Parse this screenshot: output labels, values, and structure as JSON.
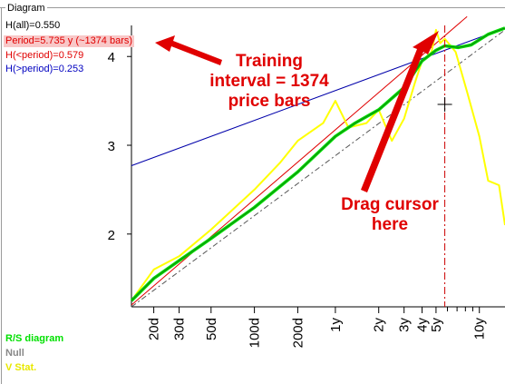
{
  "panel": {
    "tab_label": "Diagram"
  },
  "stats": {
    "h_all": "H(all)=0.550",
    "period": "Period=5.735 y (~1374 bars)",
    "h_lt_period": "H(<period)=0.579",
    "h_gt_period": "H(>period)=0.253"
  },
  "legend": {
    "rs": "R/S diagram",
    "null": "Null",
    "vstat": "V Stat."
  },
  "callouts": {
    "training_line1": "Training",
    "training_line2": "interval = 1374",
    "training_line3": "price bars",
    "drag_line1": "Drag cursor",
    "drag_line2": "here"
  },
  "colors": {
    "rs": "#00e000",
    "null": "#555555",
    "vstat": "#ffff00",
    "blue_fit": "#0000aa",
    "red_fit": "#e00000",
    "callout": "#e00000"
  },
  "chart_data": {
    "type": "line",
    "y_ticks": [
      "2",
      "3",
      "4"
    ],
    "y_tick_values": [
      2,
      3,
      4
    ],
    "ylim": [
      1.18,
      4.35
    ],
    "x_tick_labels": [
      "20d",
      "30d",
      "50d",
      "100d",
      "200d",
      "1y",
      "2y",
      "3y",
      "4y",
      "5y",
      "10y"
    ],
    "x_tick_days": [
      20,
      30,
      50,
      100,
      200,
      365,
      730,
      1095,
      1460,
      1825,
      3650
    ],
    "x_scale": "log",
    "xlim_days": [
      14,
      5500
    ],
    "cursor_days": 2100,
    "series": [
      {
        "name": "R/S diagram",
        "x": [
          14,
          20,
          30,
          50,
          100,
          200,
          365,
          500,
          730,
          1095,
          1460,
          1825,
          2100,
          2600,
          3200,
          4200,
          5500
        ],
        "y": [
          1.25,
          1.5,
          1.7,
          1.95,
          2.3,
          2.7,
          3.1,
          3.25,
          3.4,
          3.65,
          3.95,
          4.07,
          4.12,
          4.1,
          4.13,
          4.25,
          4.32
        ]
      },
      {
        "name": "Null",
        "x": [
          14,
          5500
        ],
        "y": [
          1.18,
          4.3
        ]
      },
      {
        "name": "V Stat.",
        "x": [
          14,
          20,
          30,
          50,
          100,
          150,
          200,
          300,
          365,
          450,
          600,
          730,
          900,
          1095,
          1300,
          1460,
          1700,
          1825,
          1950,
          2100,
          2500,
          3000,
          3650,
          4200,
          5000,
          5500
        ],
        "y": [
          1.25,
          1.6,
          1.75,
          2.05,
          2.5,
          2.8,
          3.05,
          3.25,
          3.5,
          3.2,
          3.25,
          3.4,
          3.05,
          3.3,
          3.7,
          3.95,
          4.05,
          4.3,
          4.15,
          4.2,
          4.05,
          3.6,
          3.1,
          2.6,
          2.55,
          2.1
        ]
      }
    ]
  }
}
